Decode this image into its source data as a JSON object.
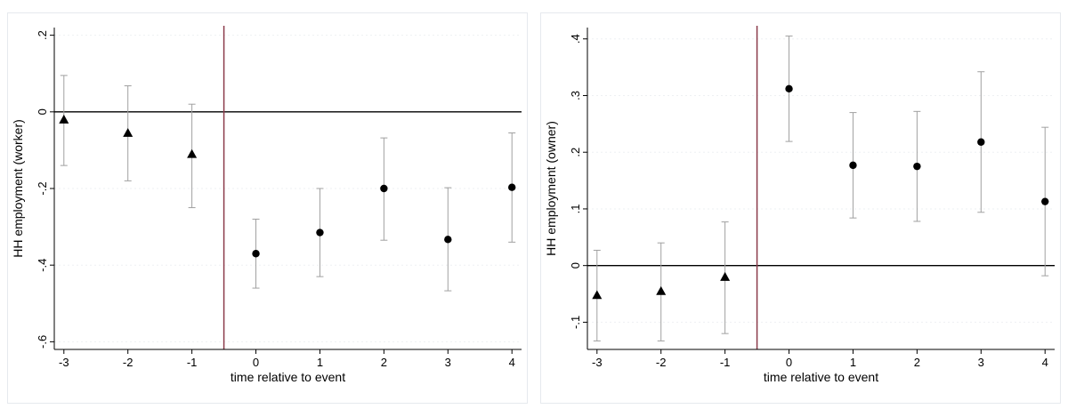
{
  "chart_data": [
    {
      "type": "scatter",
      "title": "",
      "xlabel": "time relative to event",
      "ylabel": "HH employment (worker)",
      "xlim": [
        -3.15,
        4.15
      ],
      "ylim": [
        -0.62,
        0.22
      ],
      "xticks": [
        -3,
        -2,
        -1,
        0,
        1,
        2,
        3,
        4
      ],
      "xtick_labels": [
        "-3",
        "-2",
        "-1",
        "0",
        "1",
        "2",
        "3",
        "4"
      ],
      "yticks": [
        0.2,
        0,
        -0.2,
        -0.4,
        -0.6
      ],
      "ytick_labels": [
        ".2",
        "0",
        "-.2",
        "-.4",
        "-.6"
      ],
      "grid": true,
      "reference_hline": 0,
      "event_vline": -0.5,
      "points": [
        {
          "x": -3,
          "y": -0.02,
          "lo": -0.14,
          "hi": 0.095,
          "marker": "triangle"
        },
        {
          "x": -2,
          "y": -0.055,
          "lo": -0.18,
          "hi": 0.068,
          "marker": "triangle"
        },
        {
          "x": -1,
          "y": -0.11,
          "lo": -0.25,
          "hi": 0.02,
          "marker": "triangle"
        },
        {
          "x": 0,
          "y": -0.37,
          "lo": -0.46,
          "hi": -0.28,
          "marker": "circle"
        },
        {
          "x": 1,
          "y": -0.315,
          "lo": -0.43,
          "hi": -0.2,
          "marker": "circle"
        },
        {
          "x": 2,
          "y": -0.2,
          "lo": -0.335,
          "hi": -0.068,
          "marker": "circle"
        },
        {
          "x": 3,
          "y": -0.333,
          "lo": -0.467,
          "hi": -0.198,
          "marker": "circle"
        },
        {
          "x": 4,
          "y": -0.197,
          "lo": -0.34,
          "hi": -0.055,
          "marker": "circle"
        }
      ],
      "colors": {
        "marker": "#000000",
        "ci": "#a0a0a0",
        "hline": "#000000",
        "vline": "#8b3a4a",
        "grid": "#eef0f3"
      }
    },
    {
      "type": "scatter",
      "title": "",
      "xlabel": "time relative to event",
      "ylabel": "HH employment (owner)",
      "xlim": [
        -3.15,
        4.15
      ],
      "ylim": [
        -0.148,
        0.42
      ],
      "xticks": [
        -3,
        -2,
        -1,
        0,
        1,
        2,
        3,
        4
      ],
      "xtick_labels": [
        "-3",
        "-2",
        "-1",
        "0",
        "1",
        "2",
        "3",
        "4"
      ],
      "yticks": [
        0.4,
        0.3,
        0.2,
        0.1,
        0,
        -0.1
      ],
      "ytick_labels": [
        ".4",
        ".3",
        ".2",
        ".1",
        "0",
        "-.1"
      ],
      "grid": true,
      "reference_hline": 0,
      "event_vline": -0.5,
      "points": [
        {
          "x": -3,
          "y": -0.052,
          "lo": -0.133,
          "hi": 0.027,
          "marker": "triangle"
        },
        {
          "x": -2,
          "y": -0.045,
          "lo": -0.133,
          "hi": 0.04,
          "marker": "triangle"
        },
        {
          "x": -1,
          "y": -0.02,
          "lo": -0.12,
          "hi": 0.077,
          "marker": "triangle"
        },
        {
          "x": 0,
          "y": 0.312,
          "lo": 0.219,
          "hi": 0.405,
          "marker": "circle"
        },
        {
          "x": 1,
          "y": 0.177,
          "lo": 0.084,
          "hi": 0.27,
          "marker": "circle"
        },
        {
          "x": 2,
          "y": 0.175,
          "lo": 0.078,
          "hi": 0.272,
          "marker": "circle"
        },
        {
          "x": 3,
          "y": 0.218,
          "lo": 0.094,
          "hi": 0.342,
          "marker": "circle"
        },
        {
          "x": 4,
          "y": 0.113,
          "lo": -0.018,
          "hi": 0.244,
          "marker": "circle"
        }
      ],
      "colors": {
        "marker": "#000000",
        "ci": "#a0a0a0",
        "hline": "#000000",
        "vline": "#8b3a4a",
        "grid": "#eef0f3"
      }
    }
  ]
}
